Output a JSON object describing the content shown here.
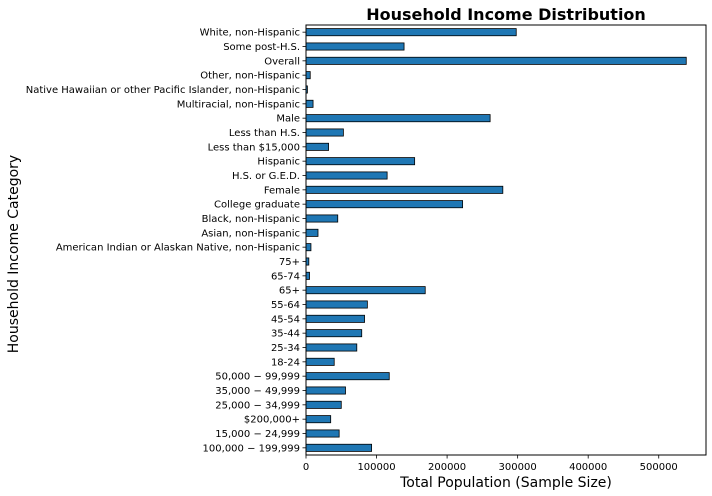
{
  "chart_data": {
    "type": "bar",
    "orientation": "horizontal",
    "title": "Household Income Distribution",
    "xlabel": "Total Population (Sample Size)",
    "ylabel": "Household Income Category",
    "xlim": [
      0,
      567000
    ],
    "xticks": [
      0,
      100000,
      200000,
      300000,
      400000,
      500000
    ],
    "xtick_labels": [
      "0",
      "100000",
      "200000",
      "300000",
      "400000",
      "500000"
    ],
    "grid": false,
    "bar_color": "#1f77b4",
    "edge_color": "#000000",
    "categories": [
      "White, non-Hispanic",
      "Some post-H.S.",
      "Overall",
      "Other, non-Hispanic",
      "Native Hawaiian or other Pacific Islander, non-Hispanic",
      "Multiracial, non-Hispanic",
      "Male",
      "Less than H.S.",
      "Less than $15,000",
      "Hispanic",
      "H.S. or G.E.D.",
      "Female",
      "College graduate",
      "Black, non-Hispanic",
      "Asian, non-Hispanic",
      "American Indian or Alaskan Native, non-Hispanic",
      "75+",
      "65-74",
      "65+",
      "55-64",
      "45-54",
      "35-44",
      "25-34",
      "18-24",
      "50,000 − 99,999",
      "35,000 − 49,999",
      "25,000 − 34,999",
      "$200,000+",
      "15,000 − 24,999",
      "100,000 − 199,999"
    ],
    "values": [
      298000,
      139000,
      539000,
      6000,
      2000,
      10000,
      261000,
      53000,
      32000,
      154000,
      115000,
      279000,
      222000,
      45000,
      17000,
      7000,
      4000,
      5000,
      169000,
      87000,
      83000,
      79000,
      72000,
      40000,
      118000,
      56000,
      50000,
      35000,
      47000,
      93000
    ]
  }
}
